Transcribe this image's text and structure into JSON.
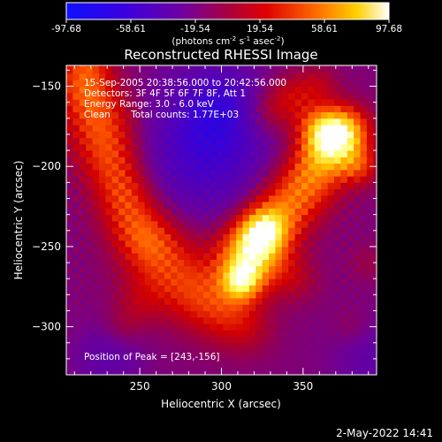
{
  "chart_data": {
    "type": "heatmap",
    "title": "Reconstructed RHESSI Image",
    "xlabel": "Heliocentric X (arcsec)",
    "ylabel": "Heliocentric Y (arcsec)",
    "xlim": [
      205,
      395
    ],
    "ylim": [
      -330,
      -137
    ],
    "x_ticks": [
      250,
      300,
      350
    ],
    "y_ticks": [
      -150,
      -200,
      -250,
      -300
    ],
    "colorbar": {
      "range": [
        -97.68,
        97.68
      ],
      "ticks": [
        "-97.68",
        "-58.61",
        "-19.54",
        "19.54",
        "58.61",
        "97.68"
      ],
      "units_prefix": "(photons cm",
      "units_exp1": "-2",
      "units_mid": " s",
      "units_exp2": "-1",
      "units_mid2": " asec",
      "units_exp3": "-2",
      "units_suffix": ")"
    },
    "annotations": [
      "15-Sep-2005 20:38:56.000 to 20:42:56.000",
      "Detectors: 3F 4F 5F 6F 7F 8F, Att 1",
      "Energy Range: 3.0 - 6.0 keV",
      "Clean       Total counts: 1.77E+03"
    ],
    "peak_label": "Position of Peak = [243,-156]",
    "colors": {
      "scale": [
        "#0000ff",
        "#5a00c8",
        "#8a0070",
        "#c00000",
        "#ff5000",
        "#ffb000",
        "#ffff80",
        "#ffffff"
      ]
    }
  },
  "footer": {
    "timestamp": "2-May-2022 14:41"
  }
}
